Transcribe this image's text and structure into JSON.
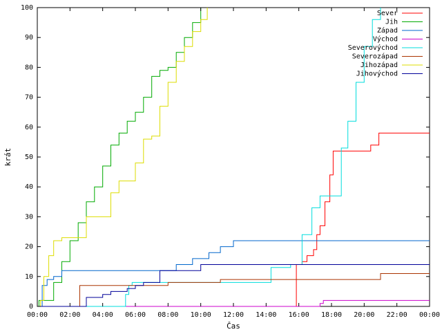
{
  "chart_data": {
    "type": "line",
    "xlabel": "Čas",
    "ylabel": "krát",
    "ylim": [
      0,
      100
    ],
    "xlim": [
      0,
      24
    ],
    "x_tick_labels": [
      "00:00",
      "02:00",
      "04:00",
      "06:00",
      "08:00",
      "10:00",
      "12:00",
      "14:00",
      "16:00",
      "18:00",
      "20:00",
      "22:00",
      "00:00"
    ],
    "y_ticks": [
      0,
      10,
      20,
      30,
      40,
      50,
      60,
      70,
      80,
      90,
      100
    ],
    "grid": false,
    "legend_position": "top-right",
    "series": [
      {
        "name": "Sever",
        "color": "#ff0000",
        "x": [
          0,
          15.8,
          15.85,
          16.2,
          16.5,
          16.9,
          17.1,
          17.3,
          17.6,
          17.9,
          18.1,
          18.4,
          18.6,
          19.1,
          20.3,
          20.4,
          20.7,
          20.9,
          24
        ],
        "y": [
          0,
          0,
          14,
          15,
          17,
          19,
          24,
          27,
          35,
          44,
          52,
          52,
          52,
          52,
          52,
          54,
          54,
          58,
          58
        ]
      },
      {
        "name": "Jih",
        "color": "#00aa00",
        "x": [
          0,
          0.1,
          0.5,
          1.0,
          1.5,
          2.0,
          2.5,
          3.0,
          3.5,
          4.0,
          4.5,
          5.0,
          5.5,
          6.0,
          6.5,
          7.0,
          7.5,
          8.0,
          8.5,
          9.0,
          9.5,
          10.0
        ],
        "y": [
          0,
          2,
          2,
          8,
          15,
          22,
          28,
          35,
          40,
          47,
          54,
          58,
          62,
          65,
          70,
          77,
          79,
          80,
          85,
          90,
          95,
          100
        ]
      },
      {
        "name": "Západ",
        "color": "#0066cc",
        "x": [
          0,
          0.3,
          0.6,
          1.0,
          1.5,
          2.0,
          4.0,
          6.0,
          8.0,
          8.5,
          9.5,
          10.5,
          11.2,
          12.0,
          14.0,
          16.0,
          18.0,
          22.0,
          24
        ],
        "y": [
          0,
          7,
          9,
          10,
          12,
          12,
          12,
          12,
          12,
          14,
          16,
          18,
          20,
          22,
          22,
          22,
          22,
          22,
          22
        ]
      },
      {
        "name": "Východ",
        "color": "#cc00cc",
        "x": [
          0,
          17.2,
          17.3,
          17.5,
          24
        ],
        "y": [
          0,
          0,
          1,
          2,
          2
        ]
      },
      {
        "name": "Severovýchod",
        "color": "#00dddd",
        "x": [
          0,
          5.2,
          5.4,
          5.6,
          5.8,
          8.0,
          10.0,
          12.0,
          14.0,
          14.3,
          15.0,
          15.5,
          16.2,
          16.8,
          17.3,
          18.0,
          18.6,
          19.0,
          19.5,
          20.0,
          20.5,
          21.0
        ],
        "y": [
          0,
          0,
          4,
          7,
          8,
          8,
          8,
          8,
          8,
          13,
          13,
          14,
          24,
          33,
          37,
          37,
          53,
          62,
          75,
          87,
          96,
          100
        ]
      },
      {
        "name": "Severozápad",
        "color": "#aa3300",
        "x": [
          0,
          2.4,
          2.6,
          3.0,
          3.5,
          4.0,
          4.5,
          5.0,
          6.0,
          8.0,
          10.0,
          11.2,
          11.5,
          14.0,
          15.8,
          16.0,
          18.0,
          20.8,
          21.0,
          24
        ],
        "y": [
          0,
          0,
          7,
          7,
          7,
          7,
          7,
          7,
          7,
          8,
          8,
          9,
          9,
          9,
          9,
          9,
          9,
          9,
          11,
          11
        ]
      },
      {
        "name": "Jihozápad",
        "color": "#dddd00",
        "x": [
          0,
          0.2,
          0.4,
          0.7,
          1.0,
          1.5,
          2.0,
          3.0,
          3.5,
          4.0,
          4.5,
          5.0,
          5.5,
          6.0,
          6.5,
          7.0,
          7.5,
          8.0,
          8.5,
          9.0,
          9.5,
          10.0,
          10.4
        ],
        "y": [
          0,
          2,
          10,
          17,
          22,
          23,
          23,
          30,
          30,
          30,
          38,
          42,
          42,
          48,
          56,
          57,
          67,
          75,
          82,
          87,
          92,
          96,
          100
        ]
      },
      {
        "name": "Jihovýchod",
        "color": "#000099",
        "x": [
          0,
          2.9,
          3.0,
          3.5,
          4.0,
          4.5,
          5.0,
          5.5,
          6.0,
          6.5,
          7.0,
          7.5,
          8.0,
          9.0,
          10.0,
          12.0,
          14.0,
          16.0,
          18.0,
          24
        ],
        "y": [
          0,
          0,
          3,
          3,
          4,
          5,
          5,
          6,
          7,
          8,
          8,
          12,
          12,
          12,
          14,
          14,
          14,
          14,
          14,
          14
        ]
      }
    ]
  }
}
